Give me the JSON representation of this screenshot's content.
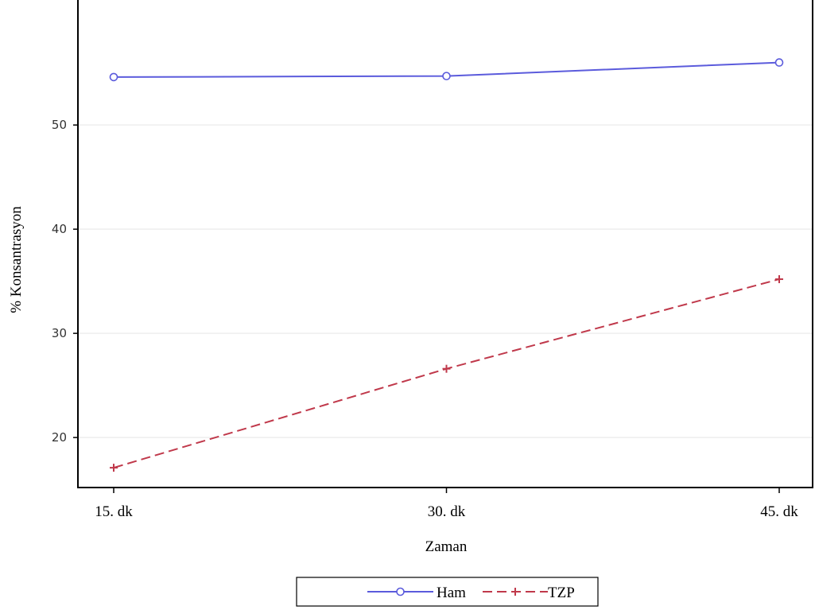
{
  "chart_data": {
    "type": "line",
    "categories": [
      "15. dk",
      "30. dk",
      "45. dk"
    ],
    "series": [
      {
        "name": "Ham",
        "values": [
          54.6,
          54.7,
          56.0
        ],
        "color": "#5b5bdc",
        "marker": "circle",
        "line_style": "solid"
      },
      {
        "name": "TZP",
        "values": [
          17.1,
          26.6,
          35.2
        ],
        "color": "#c0394b",
        "marker": "plus",
        "line_style": "dashed"
      }
    ],
    "title": "",
    "xlabel": "Zaman",
    "ylabel": "% Konsantrasyon",
    "ylim": [
      15.2,
      62
    ],
    "yticks": [
      20,
      30,
      40,
      50
    ],
    "grid": "horizontal",
    "legend_position": "bottom-center"
  }
}
